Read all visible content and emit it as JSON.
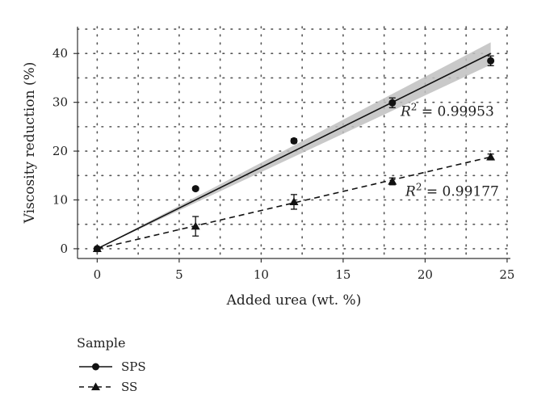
{
  "chart_data": {
    "type": "scatter",
    "xlabel": "Added urea (wt. %)",
    "ylabel": "Viscosity reduction (%)",
    "xlim": [
      -1.2,
      25.2
    ],
    "ylim": [
      -2,
      45.5
    ],
    "x_ticks": [
      0,
      5,
      10,
      15,
      20,
      25
    ],
    "y_ticks": [
      0,
      10,
      20,
      30,
      40
    ],
    "grid": true,
    "grid_style": "dotted",
    "legend_title": "Sample",
    "legend_position": "bottom-left",
    "series": [
      {
        "name": "SPS",
        "marker": "circle",
        "line_style": "solid",
        "x": [
          0,
          6,
          12,
          18,
          24
        ],
        "y": [
          0,
          12.3,
          22.1,
          29.9,
          38.5
        ],
        "err": [
          0.3,
          0.3,
          0.4,
          1.0,
          1.0
        ],
        "fit": {
          "x": [
            0,
            24
          ],
          "y": [
            0,
            40
          ],
          "band": [
            0,
            2.3
          ]
        },
        "r2_label": "= 0.99953",
        "r2_anchor": {
          "x": 18.5,
          "y": 27.2
        }
      },
      {
        "name": "SS",
        "marker": "triangle",
        "line_style": "dashed",
        "x": [
          0,
          6,
          12,
          18,
          24
        ],
        "y": [
          0,
          4.6,
          9.6,
          13.8,
          18.8
        ],
        "err": [
          0.3,
          2.0,
          1.5,
          0.7,
          0.6
        ],
        "fit": {
          "x": [
            0,
            24
          ],
          "y": [
            0,
            18.8
          ]
        },
        "r2_label": "= 0.99177",
        "r2_anchor": {
          "x": 18.8,
          "y": 10.8
        }
      }
    ],
    "r2_symbol": "R",
    "r2_power": "2",
    "colors": {
      "line": "#111111",
      "band": "#bfbfbf",
      "grid": "#555555",
      "axis": "#333333"
    }
  }
}
